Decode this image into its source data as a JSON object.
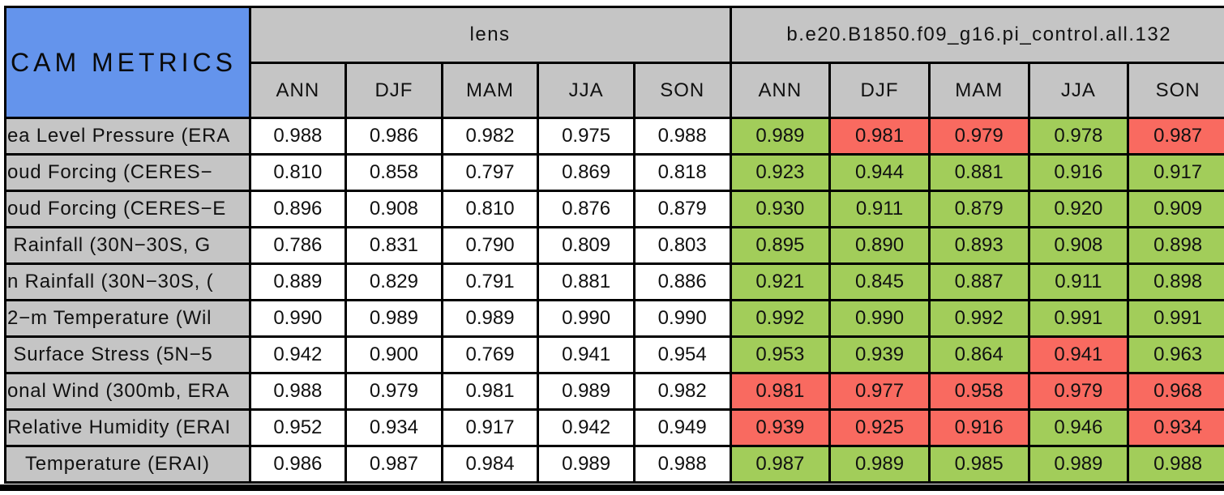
{
  "colors": {
    "title_bg": "#6494ec",
    "header_bg": "#c5c5c5",
    "good": "#a2cd5a",
    "bad": "#f96a60",
    "neutral": "#ffffff",
    "border": "#000000"
  },
  "chart_data": {
    "type": "table",
    "title": "CAM METRICS",
    "column_groups": [
      "lens",
      "b.e20.B1850.f09_g16.pi_control.all.132"
    ],
    "seasons": [
      "ANN",
      "DJF",
      "MAM",
      "JJA",
      "SON"
    ],
    "status_legend": {
      "good": "green cell",
      "bad": "red cell"
    },
    "rows": [
      {
        "label": "ea Level Pressure (ERA",
        "lens": [
          "0.988",
          "0.986",
          "0.982",
          "0.975",
          "0.988"
        ],
        "model": [
          "0.989",
          "0.981",
          "0.979",
          "0.978",
          "0.987"
        ],
        "model_status": [
          "good",
          "bad",
          "bad",
          "good",
          "bad"
        ]
      },
      {
        "label": "oud Forcing (CERES−",
        "lens": [
          "0.810",
          "0.858",
          "0.797",
          "0.869",
          "0.818"
        ],
        "model": [
          "0.923",
          "0.944",
          "0.881",
          "0.916",
          "0.917"
        ],
        "model_status": [
          "good",
          "good",
          "good",
          "good",
          "good"
        ]
      },
      {
        "label": "oud Forcing (CERES−E",
        "lens": [
          "0.896",
          "0.908",
          "0.810",
          "0.876",
          "0.879"
        ],
        "model": [
          "0.930",
          "0.911",
          "0.879",
          "0.920",
          "0.909"
        ],
        "model_status": [
          "good",
          "good",
          "good",
          "good",
          "good"
        ]
      },
      {
        "label": " Rainfall (30N−30S, G",
        "lens": [
          "0.786",
          "0.831",
          "0.790",
          "0.809",
          "0.803"
        ],
        "model": [
          "0.895",
          "0.890",
          "0.893",
          "0.908",
          "0.898"
        ],
        "model_status": [
          "good",
          "good",
          "good",
          "good",
          "good"
        ]
      },
      {
        "label": "n Rainfall (30N−30S, (",
        "lens": [
          "0.889",
          "0.829",
          "0.791",
          "0.881",
          "0.886"
        ],
        "model": [
          "0.921",
          "0.845",
          "0.887",
          "0.911",
          "0.898"
        ],
        "model_status": [
          "good",
          "good",
          "good",
          "good",
          "good"
        ]
      },
      {
        "label": "2−m Temperature (Wil",
        "lens": [
          "0.990",
          "0.989",
          "0.989",
          "0.990",
          "0.990"
        ],
        "model": [
          "0.992",
          "0.990",
          "0.992",
          "0.991",
          "0.991"
        ],
        "model_status": [
          "good",
          "good",
          "good",
          "good",
          "good"
        ]
      },
      {
        "label": " Surface Stress (5N−5",
        "lens": [
          "0.942",
          "0.900",
          "0.769",
          "0.941",
          "0.954"
        ],
        "model": [
          "0.953",
          "0.939",
          "0.864",
          "0.941",
          "0.963"
        ],
        "model_status": [
          "good",
          "good",
          "good",
          "bad",
          "good"
        ]
      },
      {
        "label": "onal Wind (300mb, ERA",
        "lens": [
          "0.988",
          "0.979",
          "0.981",
          "0.989",
          "0.982"
        ],
        "model": [
          "0.981",
          "0.977",
          "0.958",
          "0.979",
          "0.968"
        ],
        "model_status": [
          "bad",
          "bad",
          "bad",
          "bad",
          "bad"
        ]
      },
      {
        "label": "Relative Humidity (ERAI",
        "lens": [
          "0.952",
          "0.934",
          "0.917",
          "0.942",
          "0.949"
        ],
        "model": [
          "0.939",
          "0.925",
          "0.916",
          "0.946",
          "0.934"
        ],
        "model_status": [
          "bad",
          "bad",
          "bad",
          "good",
          "bad"
        ]
      },
      {
        "label": "   Temperature (ERAI)",
        "lens": [
          "0.986",
          "0.987",
          "0.984",
          "0.989",
          "0.988"
        ],
        "model": [
          "0.987",
          "0.989",
          "0.985",
          "0.989",
          "0.988"
        ],
        "model_status": [
          "good",
          "good",
          "good",
          "good",
          "good"
        ]
      }
    ]
  }
}
